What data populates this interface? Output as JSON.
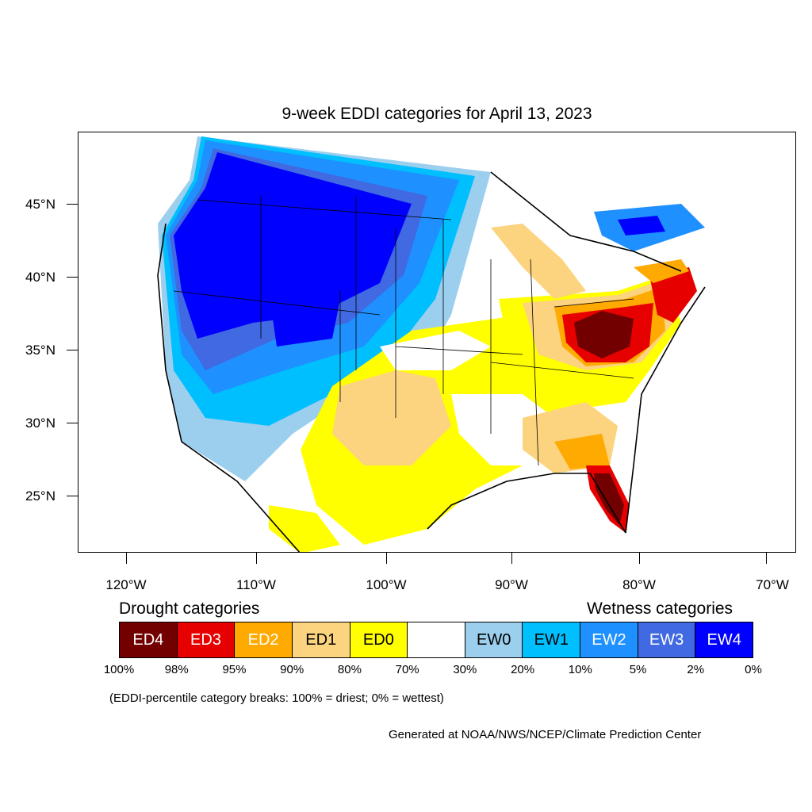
{
  "title": "9-week EDDI categories for April 13, 2023",
  "lat_labels": [
    "45°N",
    "40°N",
    "35°N",
    "30°N",
    "25°N"
  ],
  "lon_labels": [
    "120°W",
    "110°W",
    "100°W",
    "90°W",
    "80°W",
    "70°W"
  ],
  "drought_heading": "Drought categories",
  "wetness_heading": "Wetness categories",
  "legend": [
    {
      "label": "ED4",
      "color": "#730000",
      "text_color": "#ffffff"
    },
    {
      "label": "ED3",
      "color": "#e60000",
      "text_color": "#ffffff"
    },
    {
      "label": "ED2",
      "color": "#ffaa00",
      "text_color": "#ffffff"
    },
    {
      "label": "ED1",
      "color": "#fcd37f",
      "text_color": "#000000"
    },
    {
      "label": "ED0",
      "color": "#ffff00",
      "text_color": "#000000"
    },
    {
      "label": "",
      "color": "#ffffff",
      "text_color": "#000000"
    },
    {
      "label": "EW0",
      "color": "#9ccfee",
      "text_color": "#000000"
    },
    {
      "label": "EW1",
      "color": "#00bfff",
      "text_color": "#000000"
    },
    {
      "label": "EW2",
      "color": "#1e90ff",
      "text_color": "#ffffff"
    },
    {
      "label": "EW3",
      "color": "#4169e1",
      "text_color": "#ffffff"
    },
    {
      "label": "EW4",
      "color": "#0000ff",
      "text_color": "#ffffff"
    }
  ],
  "percent_breaks": [
    "100%",
    "98%",
    "95%",
    "90%",
    "80%",
    "70%",
    "30%",
    "20%",
    "10%",
    "5%",
    "2%",
    "0%"
  ],
  "note": "(EDDI-percentile category breaks: 100% = driest; 0% = wettest)",
  "credit": "Generated at NOAA/NWS/NCEP/Climate Prediction Center"
}
